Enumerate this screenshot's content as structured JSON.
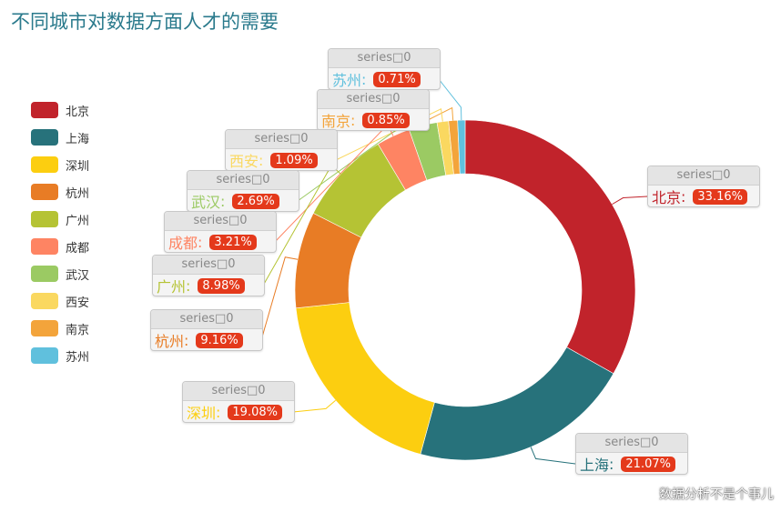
{
  "title": "不同城市对数据方面人才的需要",
  "watermark": "数据分析不是个事儿",
  "chart_data": {
    "type": "pie",
    "donut": true,
    "series_name": "series□0",
    "legend_position": "left",
    "slices": [
      {
        "name": "北京",
        "value": 33.16,
        "label": "33.16%",
        "color": "#c1232b"
      },
      {
        "name": "上海",
        "value": 21.07,
        "label": "21.07%",
        "color": "#27727b"
      },
      {
        "name": "深圳",
        "value": 19.08,
        "label": "19.08%",
        "color": "#fcce10"
      },
      {
        "name": "杭州",
        "value": 9.16,
        "label": "9.16%",
        "color": "#e87c25"
      },
      {
        "name": "广州",
        "value": 8.98,
        "label": "8.98%",
        "color": "#b5c334"
      },
      {
        "name": "成都",
        "value": 3.21,
        "label": "3.21%",
        "color": "#fe8463"
      },
      {
        "name": "武汉",
        "value": 2.69,
        "label": "2.69%",
        "color": "#9bca63"
      },
      {
        "name": "西安",
        "value": 1.09,
        "label": "1.09%",
        "color": "#fad860"
      },
      {
        "name": "南京",
        "value": 0.85,
        "label": "0.85%",
        "color": "#f3a43b"
      },
      {
        "name": "苏州",
        "value": 0.71,
        "label": "0.71%",
        "color": "#60c0dd"
      }
    ]
  }
}
